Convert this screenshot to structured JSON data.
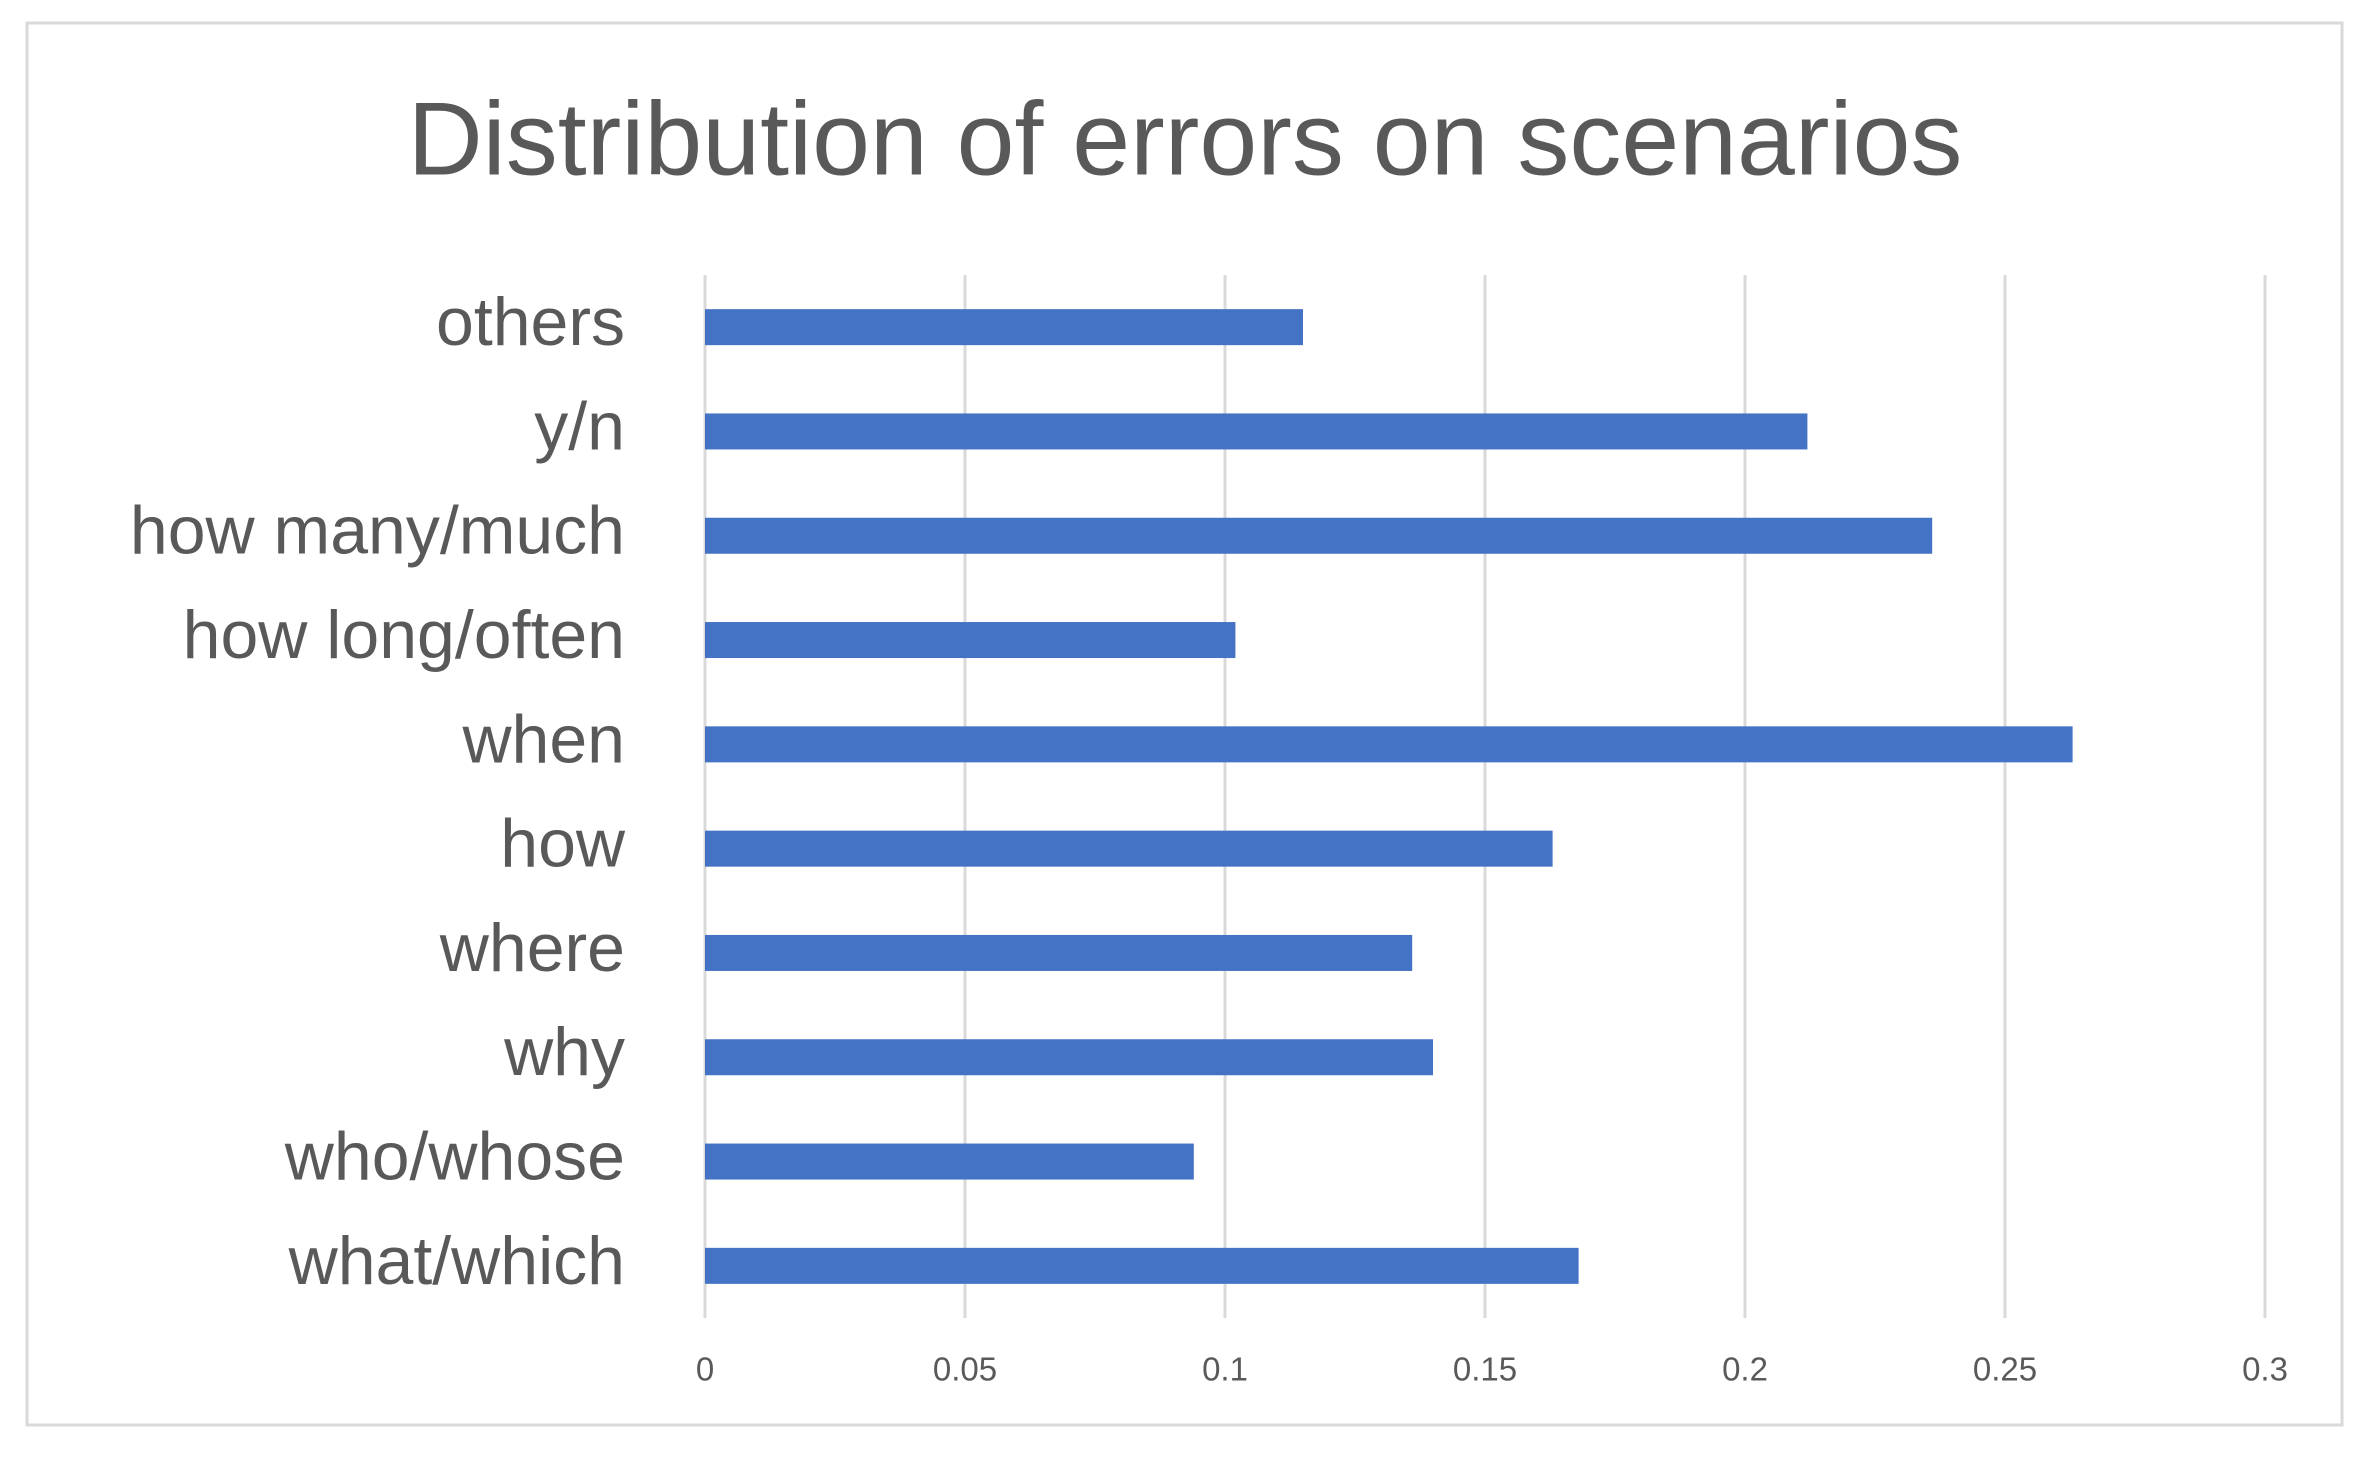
{
  "chart_data": {
    "type": "bar",
    "orientation": "horizontal",
    "title": "Distribution of errors on scenarios",
    "categories": [
      "others",
      "y/n",
      "how many/much",
      "how long/often",
      "when",
      "how",
      "where",
      "why",
      "who/whose",
      "what/which"
    ],
    "values": [
      0.115,
      0.212,
      0.236,
      0.102,
      0.263,
      0.163,
      0.136,
      0.14,
      0.094,
      0.168
    ],
    "color": "#4472c4",
    "xlim": [
      0,
      0.3
    ],
    "xticks": [
      0,
      0.05,
      0.1,
      0.15,
      0.2,
      0.25,
      0.3
    ],
    "grid": true
  }
}
